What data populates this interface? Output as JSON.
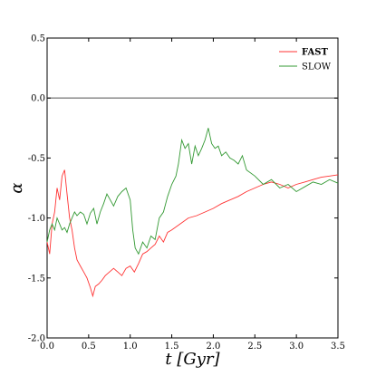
{
  "chart_data": {
    "type": "line",
    "title": "",
    "xlabel": "t [Gyr]",
    "ylabel": "α",
    "xlim": [
      0.0,
      3.5
    ],
    "ylim": [
      -2.0,
      0.5
    ],
    "xticks": [
      "0.0",
      "0.5",
      "1.0",
      "1.5",
      "2.0",
      "2.5",
      "3.0",
      "3.5"
    ],
    "yticks": [
      "-2.0",
      "-1.5",
      "-1.0",
      "-0.5",
      "0.0",
      "0.5"
    ],
    "grid": false,
    "legend_position": "top-right",
    "reference_line": {
      "y": 0.0,
      "color": "#808080"
    },
    "series": [
      {
        "name": "FAST",
        "color": "#ff3333",
        "x": [
          0.0,
          0.03,
          0.06,
          0.09,
          0.12,
          0.15,
          0.18,
          0.21,
          0.24,
          0.27,
          0.3,
          0.33,
          0.36,
          0.4,
          0.44,
          0.48,
          0.52,
          0.55,
          0.58,
          0.62,
          0.66,
          0.7,
          0.75,
          0.8,
          0.85,
          0.9,
          0.95,
          1.0,
          1.05,
          1.1,
          1.15,
          1.2,
          1.25,
          1.3,
          1.35,
          1.4,
          1.45,
          1.5,
          1.6,
          1.7,
          1.8,
          1.9,
          2.0,
          2.1,
          2.2,
          2.3,
          2.4,
          2.5,
          2.6,
          2.7,
          2.8,
          2.9,
          3.0,
          3.1,
          3.2,
          3.3,
          3.4,
          3.5
        ],
        "values": [
          -1.2,
          -1.3,
          -1.05,
          -0.95,
          -0.75,
          -0.85,
          -0.65,
          -0.6,
          -0.8,
          -1.0,
          -1.1,
          -1.25,
          -1.35,
          -1.4,
          -1.45,
          -1.5,
          -1.58,
          -1.65,
          -1.57,
          -1.55,
          -1.52,
          -1.48,
          -1.45,
          -1.42,
          -1.45,
          -1.48,
          -1.42,
          -1.4,
          -1.45,
          -1.38,
          -1.3,
          -1.28,
          -1.25,
          -1.22,
          -1.15,
          -1.2,
          -1.12,
          -1.1,
          -1.05,
          -1.0,
          -0.98,
          -0.95,
          -0.92,
          -0.88,
          -0.85,
          -0.82,
          -0.78,
          -0.75,
          -0.72,
          -0.7,
          -0.72,
          -0.75,
          -0.72,
          -0.7,
          -0.68,
          -0.66,
          -0.65,
          -0.64
        ]
      },
      {
        "name": "SLOW",
        "color": "#339933",
        "x": [
          0.0,
          0.03,
          0.06,
          0.09,
          0.12,
          0.15,
          0.18,
          0.21,
          0.24,
          0.27,
          0.3,
          0.33,
          0.36,
          0.4,
          0.44,
          0.48,
          0.52,
          0.56,
          0.6,
          0.64,
          0.68,
          0.72,
          0.76,
          0.8,
          0.85,
          0.9,
          0.95,
          1.0,
          1.03,
          1.06,
          1.1,
          1.15,
          1.2,
          1.25,
          1.3,
          1.35,
          1.4,
          1.45,
          1.5,
          1.55,
          1.58,
          1.62,
          1.66,
          1.7,
          1.74,
          1.78,
          1.82,
          1.86,
          1.9,
          1.94,
          1.98,
          2.02,
          2.06,
          2.1,
          2.15,
          2.2,
          2.25,
          2.3,
          2.35,
          2.4,
          2.5,
          2.6,
          2.7,
          2.8,
          2.9,
          3.0,
          3.1,
          3.2,
          3.3,
          3.4,
          3.5
        ],
        "values": [
          -1.2,
          -1.1,
          -1.05,
          -1.1,
          -1.0,
          -1.05,
          -1.1,
          -1.08,
          -1.12,
          -1.05,
          -1.0,
          -0.95,
          -0.98,
          -0.95,
          -0.97,
          -1.05,
          -0.96,
          -0.92,
          -1.05,
          -0.95,
          -0.88,
          -0.8,
          -0.85,
          -0.9,
          -0.82,
          -0.78,
          -0.75,
          -0.85,
          -1.1,
          -1.25,
          -1.3,
          -1.2,
          -1.25,
          -1.15,
          -1.18,
          -1.0,
          -0.95,
          -0.82,
          -0.72,
          -0.65,
          -0.55,
          -0.35,
          -0.42,
          -0.38,
          -0.55,
          -0.4,
          -0.48,
          -0.42,
          -0.35,
          -0.25,
          -0.38,
          -0.42,
          -0.4,
          -0.48,
          -0.45,
          -0.5,
          -0.52,
          -0.55,
          -0.48,
          -0.6,
          -0.65,
          -0.72,
          -0.68,
          -0.75,
          -0.72,
          -0.78,
          -0.74,
          -0.7,
          -0.72,
          -0.68,
          -0.71
        ]
      }
    ]
  }
}
